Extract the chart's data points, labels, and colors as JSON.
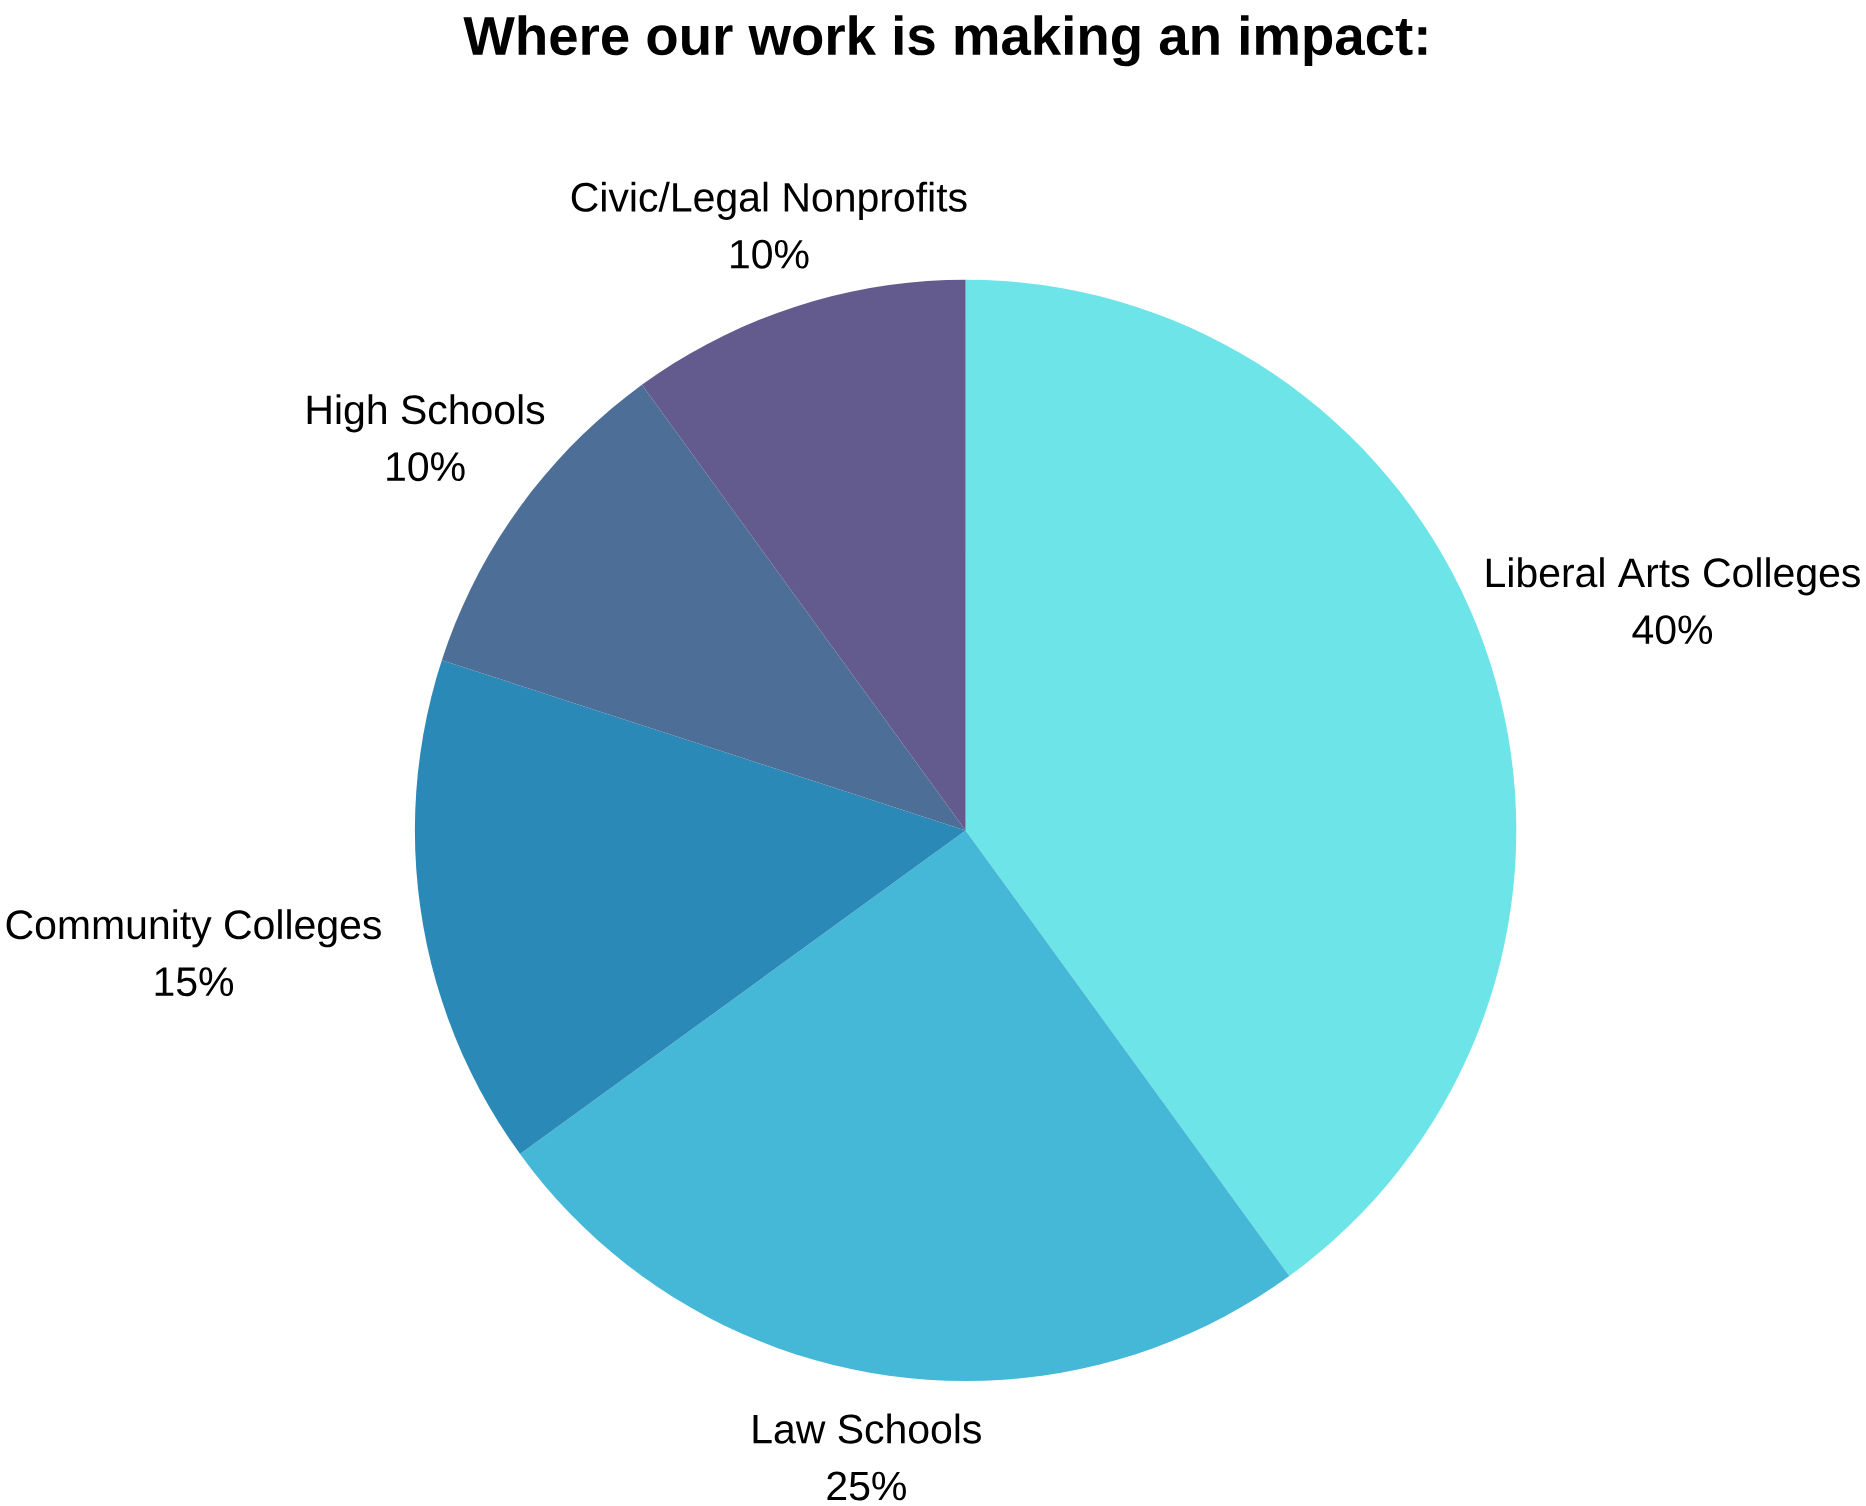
{
  "chart_data": {
    "type": "pie",
    "title": "Where our work is making an impact:",
    "categories": [
      "Liberal Arts Colleges",
      "Law Schools",
      "Community Colleges",
      "High Schools",
      "Civic/Legal Nonprofits"
    ],
    "values": [
      40,
      25,
      15,
      10,
      10
    ],
    "value_labels": [
      "40%",
      "25%",
      "15%",
      "10%",
      "10%"
    ],
    "colors": [
      "#6ce4e8",
      "#44b8d6",
      "#2b89b8",
      "#4d6e96",
      "#635a8e"
    ]
  }
}
